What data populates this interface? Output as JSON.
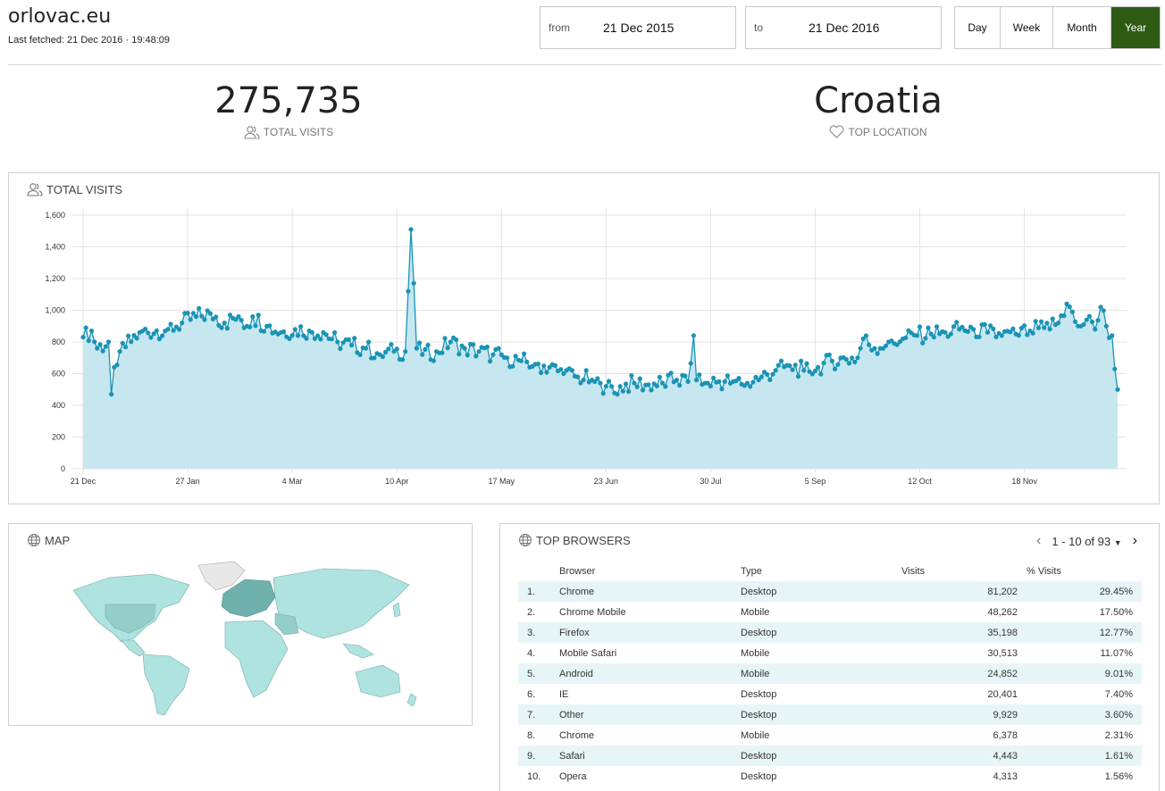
{
  "header": {
    "site": "orlovac.eu",
    "last_fetched": "Last fetched: 21 Dec 2016 · 19:48:09"
  },
  "range": {
    "from_label": "from",
    "from_value": "21 Dec 2015",
    "to_label": "to",
    "to_value": "21 Dec 2016"
  },
  "periods": [
    {
      "label": "Day",
      "active": false
    },
    {
      "label": "Week",
      "active": false
    },
    {
      "label": "Month",
      "active": false
    },
    {
      "label": "Year",
      "active": true
    }
  ],
  "kpis": {
    "visits_value": "275,735",
    "visits_label": "TOTAL VISITS",
    "location_value": "Croatia",
    "location_label": "TOP LOCATION"
  },
  "chart_panel": {
    "title": "TOTAL VISITS"
  },
  "chart_data": {
    "type": "area",
    "title": "TOTAL VISITS",
    "x_ticks": [
      "21 Dec",
      "27 Jan",
      "4 Mar",
      "10 Apr",
      "17 May",
      "23 Jun",
      "30 Jul",
      "5 Sep",
      "12 Oct",
      "18 Nov"
    ],
    "x_tick_days": [
      0,
      37,
      74,
      111,
      148,
      185,
      222,
      259,
      296,
      333
    ],
    "y_ticks": [
      "0",
      "200",
      "400",
      "600",
      "800",
      "1,000",
      "1,200",
      "1,400",
      "1,600"
    ],
    "ylim": [
      0,
      1600
    ],
    "xlim_days": [
      0,
      366
    ],
    "grid": true,
    "anchors": [
      [
        0,
        830
      ],
      [
        3,
        870
      ],
      [
        5,
        760
      ],
      [
        9,
        800
      ],
      [
        10,
        470
      ],
      [
        11,
        640
      ],
      [
        13,
        740
      ],
      [
        20,
        860
      ],
      [
        30,
        880
      ],
      [
        35,
        920
      ],
      [
        40,
        960
      ],
      [
        45,
        980
      ],
      [
        50,
        920
      ],
      [
        55,
        960
      ],
      [
        58,
        900
      ],
      [
        60,
        960
      ],
      [
        65,
        900
      ],
      [
        70,
        860
      ],
      [
        75,
        880
      ],
      [
        80,
        870
      ],
      [
        85,
        860
      ],
      [
        90,
        800
      ],
      [
        95,
        780
      ],
      [
        100,
        760
      ],
      [
        105,
        720
      ],
      [
        110,
        740
      ],
      [
        114,
        740
      ],
      [
        116,
        1510
      ],
      [
        117,
        1170
      ],
      [
        118,
        760
      ],
      [
        120,
        720
      ],
      [
        125,
        740
      ],
      [
        130,
        800
      ],
      [
        135,
        760
      ],
      [
        140,
        740
      ],
      [
        145,
        720
      ],
      [
        150,
        700
      ],
      [
        155,
        680
      ],
      [
        160,
        660
      ],
      [
        165,
        640
      ],
      [
        170,
        600
      ],
      [
        175,
        580
      ],
      [
        180,
        560
      ],
      [
        183,
        540
      ],
      [
        185,
        520
      ],
      [
        189,
        470
      ],
      [
        190,
        520
      ],
      [
        195,
        540
      ],
      [
        200,
        530
      ],
      [
        205,
        540
      ],
      [
        210,
        560
      ],
      [
        214,
        550
      ],
      [
        216,
        840
      ],
      [
        217,
        560
      ],
      [
        220,
        540
      ],
      [
        225,
        550
      ],
      [
        230,
        550
      ],
      [
        235,
        540
      ],
      [
        240,
        580
      ],
      [
        245,
        620
      ],
      [
        250,
        650
      ],
      [
        255,
        620
      ],
      [
        260,
        640
      ],
      [
        265,
        680
      ],
      [
        270,
        690
      ],
      [
        274,
        700
      ],
      [
        276,
        820
      ],
      [
        280,
        760
      ],
      [
        285,
        800
      ],
      [
        290,
        820
      ],
      [
        295,
        840
      ],
      [
        300,
        850
      ],
      [
        305,
        860
      ],
      [
        310,
        880
      ],
      [
        315,
        880
      ],
      [
        320,
        860
      ],
      [
        325,
        840
      ],
      [
        330,
        850
      ],
      [
        335,
        870
      ],
      [
        340,
        890
      ],
      [
        345,
        920
      ],
      [
        348,
        1040
      ],
      [
        352,
        900
      ],
      [
        355,
        940
      ],
      [
        358,
        880
      ],
      [
        360,
        1020
      ],
      [
        362,
        900
      ],
      [
        364,
        840
      ],
      [
        366,
        500
      ]
    ]
  },
  "map_panel": {
    "title": "MAP"
  },
  "browsers": {
    "title": "TOP BROWSERS",
    "pager": "1 - 10 of 93",
    "columns": [
      "Browser",
      "Type",
      "Visits",
      "% Visits"
    ],
    "rows": [
      {
        "idx": "1.",
        "name": "Chrome",
        "type": "Desktop",
        "visits": "81,202",
        "pct": "29.45%"
      },
      {
        "idx": "2.",
        "name": "Chrome Mobile",
        "type": "Mobile",
        "visits": "48,262",
        "pct": "17.50%"
      },
      {
        "idx": "3.",
        "name": "Firefox",
        "type": "Desktop",
        "visits": "35,198",
        "pct": "12.77%"
      },
      {
        "idx": "4.",
        "name": "Mobile Safari",
        "type": "Mobile",
        "visits": "30,513",
        "pct": "11.07%"
      },
      {
        "idx": "5.",
        "name": "Android",
        "type": "Mobile",
        "visits": "24,852",
        "pct": "9.01%"
      },
      {
        "idx": "6.",
        "name": "IE",
        "type": "Desktop",
        "visits": "20,401",
        "pct": "7.40%"
      },
      {
        "idx": "7.",
        "name": "Other",
        "type": "Desktop",
        "visits": "9,929",
        "pct": "3.60%"
      },
      {
        "idx": "8.",
        "name": "Chrome",
        "type": "Mobile",
        "visits": "6,378",
        "pct": "2.31%"
      },
      {
        "idx": "9.",
        "name": "Safari",
        "type": "Desktop",
        "visits": "4,443",
        "pct": "1.61%"
      },
      {
        "idx": "10.",
        "name": "Opera",
        "type": "Desktop",
        "visits": "4,313",
        "pct": "1.56%"
      }
    ]
  },
  "colors": {
    "accent": "#2e5b12",
    "line": "#1a93b5",
    "area": "#c6e7f0",
    "map_land": "#aee3df",
    "map_high": "#6fb2ad",
    "map_mid": "#93cfc8",
    "map_none": "#e8e8e8"
  }
}
